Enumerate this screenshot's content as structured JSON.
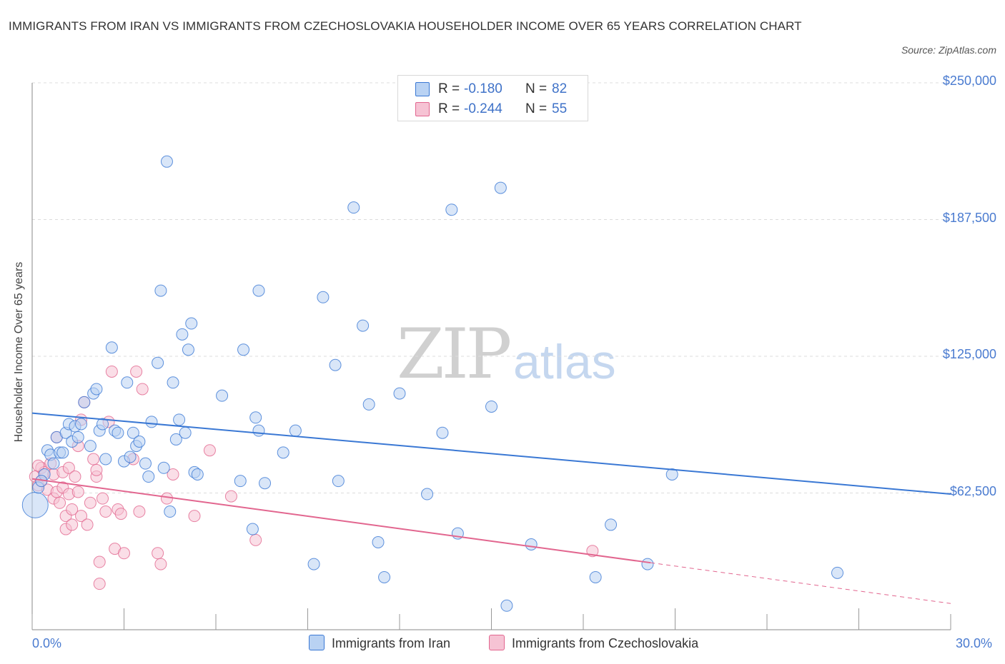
{
  "title": "IMMIGRANTS FROM IRAN VS IMMIGRANTS FROM CZECHOSLOVAKIA HOUSEHOLDER INCOME OVER 65 YEARS CORRELATION CHART",
  "source": "Source: ZipAtlas.com",
  "watermark": {
    "zip": "ZIP",
    "atlas": "atlas"
  },
  "colors": {
    "iran": "#3a78d4",
    "czech": "#e2668f",
    "iran_fill": "#b9d2f3",
    "czech_fill": "#f6c3d4"
  },
  "legend": {
    "iran": {
      "r_label": "R =",
      "r_value": "-0.180",
      "n_label": "N =",
      "n_value": "82"
    },
    "czech": {
      "r_label": "R =",
      "r_value": "-0.244",
      "n_label": "N =",
      "n_value": "55"
    }
  },
  "bottom_legend": {
    "iran": "Immigrants from Iran",
    "czech": "Immigrants from Czechoslovakia"
  },
  "chart_data": {
    "type": "scatter",
    "title": "IMMIGRANTS FROM IRAN VS IMMIGRANTS FROM CZECHOSLOVAKIA HOUSEHOLDER INCOME OVER 65 YEARS CORRELATION CHART",
    "xlabel": "",
    "ylabel": "Householder Income Over 65 years",
    "xlim": [
      0,
      30
    ],
    "ylim": [
      0,
      250000
    ],
    "x_tick_labels": [
      "0.0%",
      "30.0%"
    ],
    "y_ticks": [
      62500,
      125000,
      187500,
      250000
    ],
    "y_tick_labels": [
      "$62,500",
      "$125,000",
      "$187,500",
      "$250,000"
    ],
    "grid": true,
    "legend_position": "top-center",
    "series": [
      {
        "name": "Immigrants from Iran",
        "points": [
          [
            0.1,
            57000
          ],
          [
            0.2,
            65000
          ],
          [
            0.4,
            71000
          ],
          [
            0.5,
            82000
          ],
          [
            0.6,
            80000
          ],
          [
            0.7,
            76000
          ],
          [
            0.8,
            88000
          ],
          [
            0.9,
            81000
          ],
          [
            1.0,
            81000
          ],
          [
            1.1,
            90000
          ],
          [
            1.2,
            94000
          ],
          [
            1.3,
            86000
          ],
          [
            1.4,
            93000
          ],
          [
            1.5,
            88000
          ],
          [
            1.6,
            94000
          ],
          [
            1.7,
            104000
          ],
          [
            1.9,
            84000
          ],
          [
            2.0,
            108000
          ],
          [
            2.1,
            110000
          ],
          [
            2.2,
            91000
          ],
          [
            2.3,
            94000
          ],
          [
            2.4,
            78000
          ],
          [
            2.6,
            129000
          ],
          [
            2.7,
            91000
          ],
          [
            2.8,
            90000
          ],
          [
            3.0,
            77000
          ],
          [
            3.1,
            113000
          ],
          [
            3.2,
            79000
          ],
          [
            3.3,
            90000
          ],
          [
            3.4,
            84000
          ],
          [
            3.5,
            86000
          ],
          [
            3.7,
            76000
          ],
          [
            3.8,
            70000
          ],
          [
            3.9,
            95000
          ],
          [
            4.1,
            122000
          ],
          [
            4.2,
            155000
          ],
          [
            4.3,
            74000
          ],
          [
            4.4,
            214000
          ],
          [
            4.5,
            54000
          ],
          [
            4.6,
            113000
          ],
          [
            4.7,
            87000
          ],
          [
            4.8,
            96000
          ],
          [
            4.9,
            135000
          ],
          [
            5.0,
            90000
          ],
          [
            5.1,
            128000
          ],
          [
            5.2,
            140000
          ],
          [
            5.3,
            72000
          ],
          [
            5.4,
            71000
          ],
          [
            6.2,
            107000
          ],
          [
            6.8,
            68000
          ],
          [
            6.9,
            128000
          ],
          [
            7.2,
            46000
          ],
          [
            7.3,
            97000
          ],
          [
            7.4,
            91000
          ],
          [
            7.4,
            155000
          ],
          [
            7.6,
            67000
          ],
          [
            8.2,
            81000
          ],
          [
            8.6,
            91000
          ],
          [
            9.2,
            30000
          ],
          [
            9.5,
            152000
          ],
          [
            9.9,
            121000
          ],
          [
            10.0,
            68000
          ],
          [
            10.5,
            193000
          ],
          [
            10.8,
            139000
          ],
          [
            11.0,
            103000
          ],
          [
            11.3,
            40000
          ],
          [
            11.5,
            24000
          ],
          [
            12.0,
            108000
          ],
          [
            12.9,
            62000
          ],
          [
            13.4,
            90000
          ],
          [
            13.7,
            192000
          ],
          [
            13.9,
            44000
          ],
          [
            15.0,
            102000
          ],
          [
            15.3,
            202000
          ],
          [
            15.5,
            11000
          ],
          [
            16.3,
            39000
          ],
          [
            18.4,
            24000
          ],
          [
            18.9,
            48000
          ],
          [
            20.1,
            30000
          ],
          [
            20.9,
            71000
          ],
          [
            26.3,
            26000
          ],
          [
            0.3,
            68000
          ]
        ]
      },
      {
        "name": "Immigrants from Czechoslovakia",
        "points": [
          [
            0.1,
            70000
          ],
          [
            0.2,
            66000
          ],
          [
            0.3,
            74000
          ],
          [
            0.3,
            68000
          ],
          [
            0.4,
            72000
          ],
          [
            0.5,
            64000
          ],
          [
            0.6,
            76000
          ],
          [
            0.7,
            71000
          ],
          [
            0.7,
            60000
          ],
          [
            0.8,
            63000
          ],
          [
            0.8,
            88000
          ],
          [
            0.9,
            58000
          ],
          [
            1.0,
            72000
          ],
          [
            1.0,
            65000
          ],
          [
            1.1,
            52000
          ],
          [
            1.1,
            46000
          ],
          [
            1.2,
            62000
          ],
          [
            1.2,
            74000
          ],
          [
            1.3,
            55000
          ],
          [
            1.3,
            48000
          ],
          [
            1.4,
            70000
          ],
          [
            1.5,
            63000
          ],
          [
            1.5,
            84000
          ],
          [
            1.6,
            96000
          ],
          [
            1.6,
            52000
          ],
          [
            1.7,
            104000
          ],
          [
            1.8,
            48000
          ],
          [
            1.9,
            58000
          ],
          [
            2.0,
            78000
          ],
          [
            2.1,
            70000
          ],
          [
            2.1,
            73000
          ],
          [
            2.2,
            31000
          ],
          [
            2.2,
            21000
          ],
          [
            2.3,
            60000
          ],
          [
            2.4,
            54000
          ],
          [
            2.5,
            95000
          ],
          [
            2.6,
            118000
          ],
          [
            2.7,
            37000
          ],
          [
            2.8,
            55000
          ],
          [
            2.9,
            53000
          ],
          [
            3.0,
            35000
          ],
          [
            3.3,
            78000
          ],
          [
            3.4,
            118000
          ],
          [
            3.5,
            54000
          ],
          [
            3.6,
            110000
          ],
          [
            4.1,
            35000
          ],
          [
            4.2,
            30000
          ],
          [
            4.4,
            60000
          ],
          [
            4.6,
            71000
          ],
          [
            5.3,
            52000
          ],
          [
            5.8,
            82000
          ],
          [
            6.5,
            61000
          ],
          [
            7.3,
            41000
          ],
          [
            18.3,
            36000
          ],
          [
            0.2,
            75000
          ]
        ]
      }
    ],
    "trend_lines": [
      {
        "name": "Immigrants from Iran",
        "x": [
          0,
          30
        ],
        "y": [
          99000,
          62000
        ],
        "dashed_after": null
      },
      {
        "name": "Immigrants from Czechoslovakia",
        "x": [
          0,
          30
        ],
        "y": [
          69000,
          12000
        ],
        "dashed_after": 20.2
      }
    ]
  }
}
